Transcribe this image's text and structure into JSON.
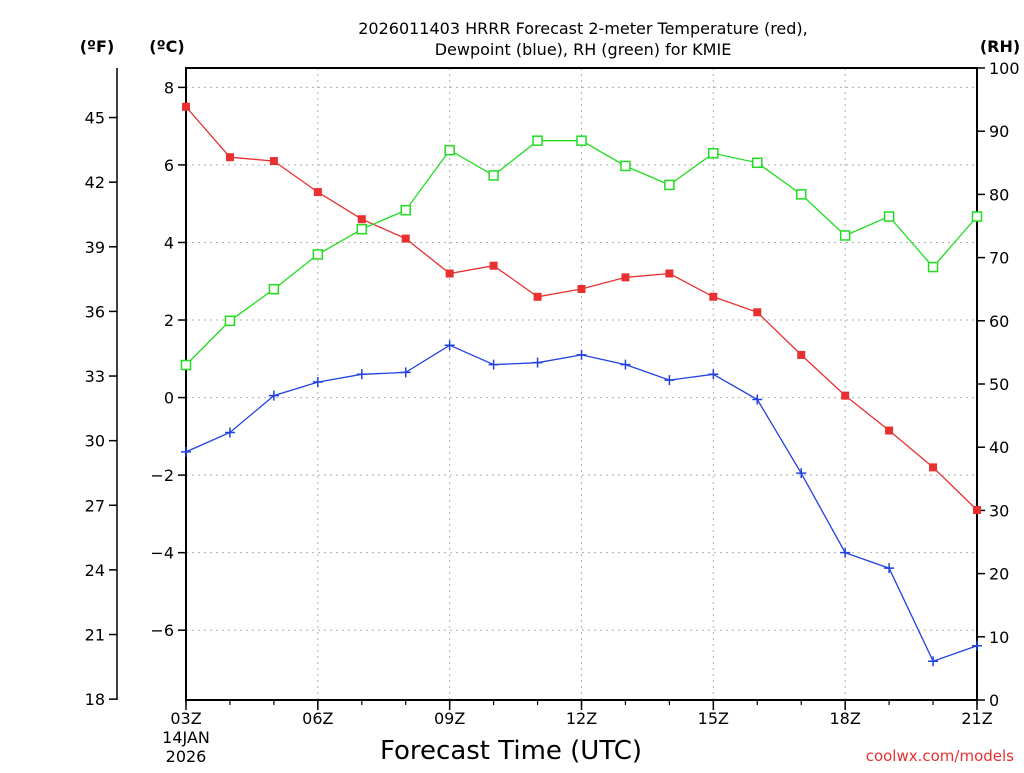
{
  "chart_data": {
    "type": "line",
    "title_line1": "2026011403 HRRR Forecast 2-meter Temperature (red),",
    "title_line2": "Dewpoint (blue), RH (green) for KMIE",
    "xlabel": "Forecast Time (UTC)",
    "unit_f": "(ºF)",
    "unit_c": "(ºC)",
    "unit_rh": "(RH)",
    "date_day": "14JAN",
    "date_year": "2026",
    "credit": "coolwx.com/models",
    "grid": "dotted",
    "x_hours": [
      3,
      4,
      5,
      6,
      7,
      8,
      9,
      10,
      11,
      12,
      13,
      14,
      15,
      16,
      17,
      18,
      19,
      20,
      21
    ],
    "x_ticks": [
      {
        "hour": 3,
        "label": "03Z"
      },
      {
        "hour": 6,
        "label": "06Z"
      },
      {
        "hour": 9,
        "label": "09Z"
      },
      {
        "hour": 12,
        "label": "12Z"
      },
      {
        "hour": 15,
        "label": "15Z"
      },
      {
        "hour": 18,
        "label": "18Z"
      },
      {
        "hour": 21,
        "label": "21Z"
      }
    ],
    "xlim": [
      3,
      21
    ],
    "y_c_lim": [
      -7.8,
      8.5
    ],
    "y_c_ticks": [
      {
        "value": 8,
        "label": "8"
      },
      {
        "value": 6,
        "label": "6"
      },
      {
        "value": 4,
        "label": "4"
      },
      {
        "value": 2,
        "label": "2"
      },
      {
        "value": 0,
        "label": "0"
      },
      {
        "value": -2,
        "label": "−2"
      },
      {
        "value": -4,
        "label": "−4"
      },
      {
        "value": -6,
        "label": "−6"
      }
    ],
    "y_f_ticks": [
      {
        "value": 45,
        "label": "45"
      },
      {
        "value": 42,
        "label": "42"
      },
      {
        "value": 39,
        "label": "39"
      },
      {
        "value": 36,
        "label": "36"
      },
      {
        "value": 33,
        "label": "33"
      },
      {
        "value": 30,
        "label": "30"
      },
      {
        "value": 27,
        "label": "27"
      },
      {
        "value": 24,
        "label": "24"
      },
      {
        "value": 21,
        "label": "21"
      },
      {
        "value": 18,
        "label": "18"
      }
    ],
    "y_rh_lim": [
      0,
      100
    ],
    "y_rh_ticks": [
      {
        "value": 100,
        "label": "100"
      },
      {
        "value": 90,
        "label": "90"
      },
      {
        "value": 80,
        "label": "80"
      },
      {
        "value": 70,
        "label": "70"
      },
      {
        "value": 60,
        "label": "60"
      },
      {
        "value": 50,
        "label": "50"
      },
      {
        "value": 40,
        "label": "40"
      },
      {
        "value": 30,
        "label": "30"
      },
      {
        "value": 20,
        "label": "20"
      },
      {
        "value": 10,
        "label": "10"
      },
      {
        "value": 0,
        "label": "0"
      }
    ],
    "series": [
      {
        "name": "Temperature",
        "axis": "c",
        "color": "#e83030",
        "marker": "filled-square",
        "values": [
          7.5,
          6.2,
          6.1,
          5.3,
          4.6,
          4.1,
          3.2,
          3.4,
          2.6,
          2.8,
          3.1,
          3.2,
          2.6,
          2.2,
          1.1,
          0.05,
          -0.85,
          -1.8,
          -2.9
        ]
      },
      {
        "name": "Dewpoint",
        "axis": "c",
        "color": "#2040e0",
        "marker": "plus",
        "values": [
          -1.4,
          -0.9,
          0.05,
          0.4,
          0.6,
          0.65,
          1.35,
          0.85,
          0.9,
          1.1,
          0.85,
          0.45,
          0.6,
          -0.05,
          -1.95,
          -4.0,
          -4.4,
          -6.8,
          -6.4
        ]
      },
      {
        "name": "RH",
        "axis": "rh",
        "color": "#20dd20",
        "marker": "open-square",
        "values": [
          53,
          60,
          65,
          70.5,
          74.5,
          77.5,
          87,
          83,
          88.5,
          88.5,
          84.5,
          81.5,
          86.5,
          85,
          80,
          73.5,
          76.5,
          68.5,
          76.5
        ]
      }
    ]
  }
}
